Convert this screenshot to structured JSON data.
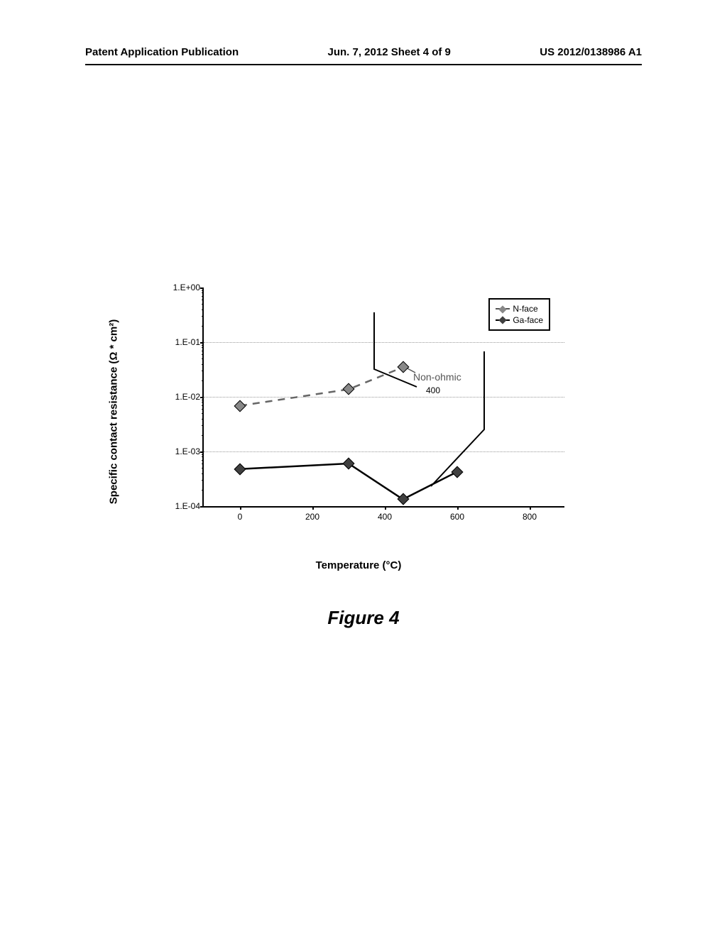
{
  "header": {
    "left": "Patent Application Publication",
    "center": "Jun. 7, 2012  Sheet 4 of 9",
    "right": "US 2012/0138986 A1"
  },
  "chart": {
    "type": "line",
    "ylabel": "Specific contact resistance (Ω * cm²)",
    "xlabel": "Temperature (°C)",
    "xlim": [
      -100,
      900
    ],
    "xticks": [
      0,
      200,
      400,
      600,
      800
    ],
    "ylim_log": [
      -4,
      0
    ],
    "ytick_labels": [
      "1.E-04",
      "1.E-03",
      "1.E-02",
      "1.E-01",
      "1.E+00"
    ],
    "grid_color": "#999999",
    "background_color": "#ffffff",
    "series": [
      {
        "name": "N-face",
        "color": "#666666",
        "dash": "8,6",
        "marker_fill": "#888888",
        "points_x": [
          0,
          300,
          450
        ],
        "points_logy": [
          -2.15,
          -1.85,
          -1.45
        ],
        "partial_nonohmic": true
      },
      {
        "name": "Ga-face",
        "color": "#000000",
        "dash": "none",
        "marker_fill": "#404040",
        "points_x": [
          0,
          300,
          450,
          600
        ],
        "points_logy": [
          -3.3,
          -3.2,
          -3.85,
          -3.35
        ]
      }
    ],
    "legend": {
      "items": [
        "N-face",
        "Ga-face"
      ]
    },
    "annotation": {
      "text": "Non-ohmic",
      "ref_number": "400"
    }
  },
  "figure_caption": "Figure 4"
}
